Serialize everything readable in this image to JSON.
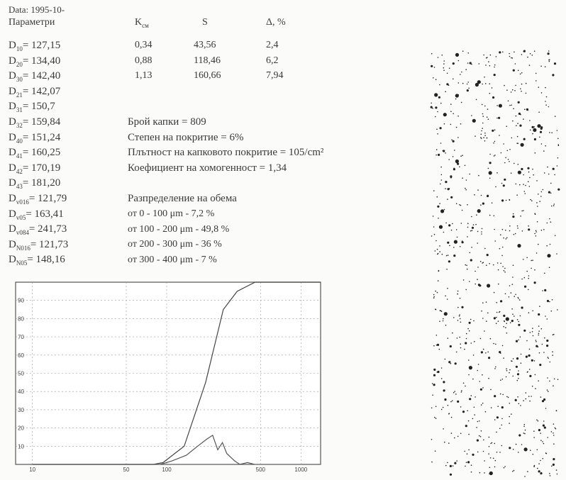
{
  "header": {
    "date": "Data: 1995-10-",
    "params": "Параметри"
  },
  "parameters": [
    {
      "name": "D",
      "sub": "10",
      "rest": "= 127,15"
    },
    {
      "name": "D",
      "sub": "20",
      "rest": "= 134,40"
    },
    {
      "name": "D",
      "sub": "30",
      "rest": "= 142,40"
    },
    {
      "name": "D",
      "sub": "21",
      "rest": "= 142,07"
    },
    {
      "name": "D",
      "sub": "31",
      "rest": "= 150,7"
    },
    {
      "name": "D",
      "sub": "32",
      "rest": "= 159,84"
    },
    {
      "name": "D",
      "sub": "40",
      "rest": "= 151,24"
    },
    {
      "name": "D",
      "sub": "41",
      "rest": "= 160,25"
    },
    {
      "name": "D",
      "sub": "42",
      "rest": "= 170,19"
    },
    {
      "name": "D",
      "sub": "43",
      "rest": "= 181,20"
    },
    {
      "name": "D",
      "sub": "v016",
      "rest": "= 121,79"
    },
    {
      "name": "D",
      "sub": "v05",
      "rest": "= 163,41"
    },
    {
      "name": "D",
      "sub": "v084",
      "rest": "= 241,73"
    },
    {
      "name": "D",
      "sub": "N016",
      "rest": "= 121,73"
    },
    {
      "name": "D",
      "sub": "N05",
      "rest": "= 148,16"
    }
  ],
  "table": {
    "header": [
      {
        "name": "K",
        "sub": "см"
      },
      {
        "name": "S",
        "sub": ""
      },
      {
        "name": "Δ, %",
        "sub": ""
      }
    ],
    "rows": [
      [
        "0,34",
        "43,56",
        "2,4"
      ],
      [
        "0,88",
        "118,46",
        "6,2"
      ],
      [
        "1,13",
        "160,66",
        "7,94"
      ]
    ]
  },
  "stats": [
    "Брой капки = 809",
    "Степен на покритие = 6%",
    "Плътност на капковото покритие = 105/cm²",
    "Коефициент на хомогенност = 1,34"
  ],
  "distribution": {
    "title": "Разпределение на обема",
    "items": [
      "от 0 - 100 μm - 7,2 %",
      "от 100 - 200 μm - 49,8 %",
      "от 200 - 300 μm - 36 %",
      "от 300 - 400 μm - 7 %"
    ]
  },
  "chart": {
    "type": "line",
    "log_x": true,
    "grid": true,
    "xlim": [
      7.5,
      1400
    ],
    "ylim": [
      0,
      100
    ],
    "xticks": [
      10,
      50,
      100,
      500,
      1000
    ],
    "yticks": [
      10,
      20,
      30,
      40,
      50,
      60,
      70,
      80,
      90
    ],
    "series": [
      {
        "color": "#444444",
        "x": [
          10,
          80,
          94,
          135,
          195,
          264,
          335,
          455,
          1400
        ],
        "values": [
          0,
          0,
          1,
          10,
          45,
          85,
          95,
          100,
          100
        ]
      },
      {
        "color": "#555555",
        "x": [
          90,
          110,
          140,
          170,
          200,
          220,
          240,
          260,
          280,
          320,
          350,
          400,
          450
        ],
        "values": [
          0,
          2,
          5,
          10,
          14,
          16,
          8,
          12,
          6,
          2,
          0,
          1,
          0
        ]
      }
    ]
  }
}
